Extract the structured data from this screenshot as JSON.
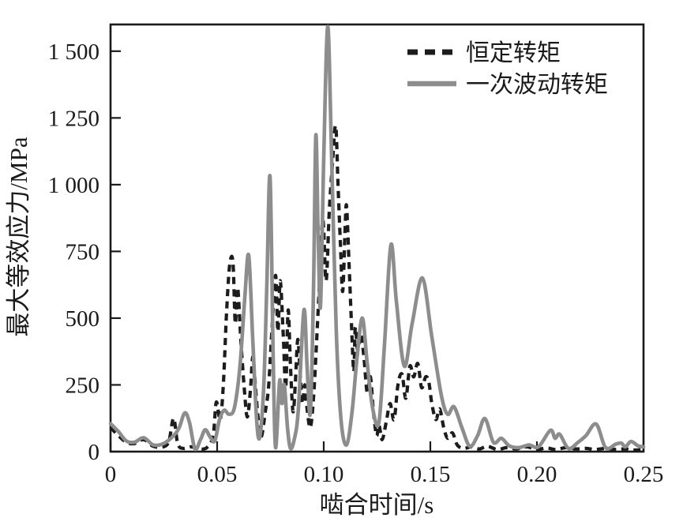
{
  "figure": {
    "background_color": "#ffffff",
    "axis_color": "#1a1a1a",
    "plot_border": true
  },
  "chart_data": {
    "type": "line",
    "title": "",
    "xlabel": "啮合时间/s",
    "ylabel": "最大等效应力/MPa",
    "xlim": [
      0,
      0.25
    ],
    "ylim": [
      0,
      1600
    ],
    "grid": false,
    "legend_position": "inside-top-right",
    "x_ticks": {
      "values": [
        0,
        0.05,
        0.1,
        0.15,
        0.2,
        0.25
      ],
      "labels": [
        "0",
        "0.05",
        "0.10",
        "0.15",
        "0.20",
        "0.25"
      ]
    },
    "y_ticks": {
      "values": [
        0,
        250,
        500,
        750,
        1000,
        1250,
        1500
      ],
      "labels": [
        "0",
        "250",
        "500",
        "750",
        "1 000",
        "1 250",
        "1 500"
      ]
    },
    "series": [
      {
        "name": "恒定转矩",
        "line_style": "dashed",
        "color": "#1c1c1c",
        "points": [
          [
            0,
            90
          ],
          [
            0.0037,
            60
          ],
          [
            0.0074,
            35
          ],
          [
            0.0111,
            30
          ],
          [
            0.0156,
            45
          ],
          [
            0.02,
            20
          ],
          [
            0.0248,
            18
          ],
          [
            0.0274,
            40
          ],
          [
            0.0296,
            125
          ],
          [
            0.0315,
            30
          ],
          [
            0.0341,
            12
          ],
          [
            0.0378,
            18
          ],
          [
            0.0415,
            10
          ],
          [
            0.0452,
            15
          ],
          [
            0.0481,
            60
          ],
          [
            0.0496,
            185
          ],
          [
            0.0515,
            120
          ],
          [
            0.053,
            265
          ],
          [
            0.0544,
            520
          ],
          [
            0.0559,
            700
          ],
          [
            0.0574,
            710
          ],
          [
            0.0585,
            480
          ],
          [
            0.0596,
            615
          ],
          [
            0.0611,
            420
          ],
          [
            0.0626,
            250
          ],
          [
            0.0641,
            130
          ],
          [
            0.0656,
            230
          ],
          [
            0.0667,
            355
          ],
          [
            0.0678,
            260
          ],
          [
            0.0693,
            120
          ],
          [
            0.0707,
            55
          ],
          [
            0.0726,
            150
          ],
          [
            0.0741,
            240
          ],
          [
            0.0756,
            440
          ],
          [
            0.0774,
            660
          ],
          [
            0.0785,
            450
          ],
          [
            0.0796,
            640
          ],
          [
            0.0811,
            420
          ],
          [
            0.0822,
            240
          ],
          [
            0.0833,
            530
          ],
          [
            0.0844,
            320
          ],
          [
            0.0856,
            150
          ],
          [
            0.0867,
            260
          ],
          [
            0.0878,
            420
          ],
          [
            0.0889,
            300
          ],
          [
            0.09,
            180
          ],
          [
            0.0911,
            250
          ],
          [
            0.0922,
            160
          ],
          [
            0.0937,
            90
          ],
          [
            0.0952,
            200
          ],
          [
            0.0967,
            420
          ],
          [
            0.0981,
            650
          ],
          [
            0.0996,
            870
          ],
          [
            0.1011,
            640
          ],
          [
            0.1026,
            900
          ],
          [
            0.1041,
            1080
          ],
          [
            0.1056,
            1220
          ],
          [
            0.1067,
            1000
          ],
          [
            0.1078,
            780
          ],
          [
            0.1089,
            600
          ],
          [
            0.11,
            830
          ],
          [
            0.1107,
            920
          ],
          [
            0.1119,
            700
          ],
          [
            0.113,
            480
          ],
          [
            0.1141,
            300
          ],
          [
            0.1148,
            465
          ],
          [
            0.1159,
            380
          ],
          [
            0.1174,
            440
          ],
          [
            0.1189,
            350
          ],
          [
            0.1204,
            220
          ],
          [
            0.1219,
            280
          ],
          [
            0.1233,
            150
          ],
          [
            0.1248,
            60
          ],
          [
            0.1259,
            100
          ],
          [
            0.1274,
            45
          ],
          [
            0.1293,
            110
          ],
          [
            0.1311,
            180
          ],
          [
            0.133,
            120
          ],
          [
            0.1348,
            250
          ],
          [
            0.1367,
            290
          ],
          [
            0.1385,
            200
          ],
          [
            0.1404,
            320
          ],
          [
            0.1422,
            280
          ],
          [
            0.1441,
            330
          ],
          [
            0.1459,
            240
          ],
          [
            0.1478,
            280
          ],
          [
            0.1493,
            260
          ],
          [
            0.1507,
            180
          ],
          [
            0.1526,
            120
          ],
          [
            0.1544,
            160
          ],
          [
            0.1563,
            90
          ],
          [
            0.1581,
            50
          ],
          [
            0.1604,
            70
          ],
          [
            0.1626,
            25
          ],
          [
            0.1656,
            12
          ],
          [
            0.1693,
            18
          ],
          [
            0.173,
            10
          ],
          [
            0.1767,
            20
          ],
          [
            0.1815,
            8
          ],
          [
            0.1859,
            15
          ],
          [
            0.1904,
            10
          ],
          [
            0.1952,
            18
          ],
          [
            0.2,
            8
          ],
          [
            0.2044,
            14
          ],
          [
            0.2089,
            8
          ],
          [
            0.2137,
            15
          ],
          [
            0.2181,
            10
          ],
          [
            0.223,
            12
          ],
          [
            0.2274,
            8
          ],
          [
            0.2322,
            12
          ],
          [
            0.237,
            8
          ],
          [
            0.2415,
            10
          ],
          [
            0.2452,
            6
          ],
          [
            0.25,
            8
          ]
        ]
      },
      {
        "name": "一次波动转矩",
        "line_style": "solid",
        "color": "#8d8d8d",
        "points": [
          [
            0,
            105
          ],
          [
            0.0037,
            75
          ],
          [
            0.0074,
            40
          ],
          [
            0.0111,
            35
          ],
          [
            0.0156,
            52
          ],
          [
            0.02,
            25
          ],
          [
            0.0248,
            30
          ],
          [
            0.0296,
            60
          ],
          [
            0.0322,
            90
          ],
          [
            0.0348,
            145
          ],
          [
            0.037,
            110
          ],
          [
            0.0396,
            10
          ],
          [
            0.0422,
            45
          ],
          [
            0.0444,
            82
          ],
          [
            0.0467,
            55
          ],
          [
            0.0489,
            40
          ],
          [
            0.0511,
            120
          ],
          [
            0.0533,
            155
          ],
          [
            0.0556,
            140
          ],
          [
            0.0581,
            165
          ],
          [
            0.0607,
            320
          ],
          [
            0.063,
            580
          ],
          [
            0.0648,
            735
          ],
          [
            0.0667,
            420
          ],
          [
            0.0685,
            120
          ],
          [
            0.07,
            55
          ],
          [
            0.0719,
            250
          ],
          [
            0.0733,
            620
          ],
          [
            0.0748,
            1030
          ],
          [
            0.0763,
            350
          ],
          [
            0.0774,
            15
          ],
          [
            0.0793,
            265
          ],
          [
            0.0804,
            180
          ],
          [
            0.0815,
            250
          ],
          [
            0.083,
            90
          ],
          [
            0.0844,
            12
          ],
          [
            0.0863,
            50
          ],
          [
            0.0881,
            160
          ],
          [
            0.0907,
            530
          ],
          [
            0.0922,
            320
          ],
          [
            0.0937,
            145
          ],
          [
            0.0952,
            600
          ],
          [
            0.0963,
            1185
          ],
          [
            0.0974,
            800
          ],
          [
            0.0985,
            545
          ],
          [
            0.1,
            1100
          ],
          [
            0.1019,
            1592
          ],
          [
            0.1037,
            1100
          ],
          [
            0.1059,
            450
          ],
          [
            0.1081,
            120
          ],
          [
            0.1107,
            25
          ],
          [
            0.1133,
            150
          ],
          [
            0.1156,
            350
          ],
          [
            0.1181,
            500
          ],
          [
            0.1204,
            330
          ],
          [
            0.123,
            160
          ],
          [
            0.1259,
            110
          ],
          [
            0.1285,
            400
          ],
          [
            0.1315,
            775
          ],
          [
            0.1341,
            560
          ],
          [
            0.1378,
            320
          ],
          [
            0.1415,
            480
          ],
          [
            0.1463,
            650
          ],
          [
            0.1507,
            430
          ],
          [
            0.1552,
            210
          ],
          [
            0.1581,
            140
          ],
          [
            0.1611,
            168
          ],
          [
            0.1648,
            90
          ],
          [
            0.1685,
            20
          ],
          [
            0.1722,
            60
          ],
          [
            0.1756,
            124
          ],
          [
            0.1796,
            35
          ],
          [
            0.1833,
            50
          ],
          [
            0.187,
            22
          ],
          [
            0.1915,
            15
          ],
          [
            0.1963,
            25
          ],
          [
            0.2007,
            18
          ],
          [
            0.2063,
            80
          ],
          [
            0.2085,
            50
          ],
          [
            0.2107,
            65
          ],
          [
            0.2148,
            12
          ],
          [
            0.2193,
            35
          ],
          [
            0.223,
            60
          ],
          [
            0.2278,
            103
          ],
          [
            0.2322,
            15
          ],
          [
            0.237,
            28
          ],
          [
            0.2396,
            32
          ],
          [
            0.2415,
            18
          ],
          [
            0.2441,
            38
          ],
          [
            0.2474,
            22
          ],
          [
            0.25,
            18
          ]
        ]
      }
    ]
  }
}
